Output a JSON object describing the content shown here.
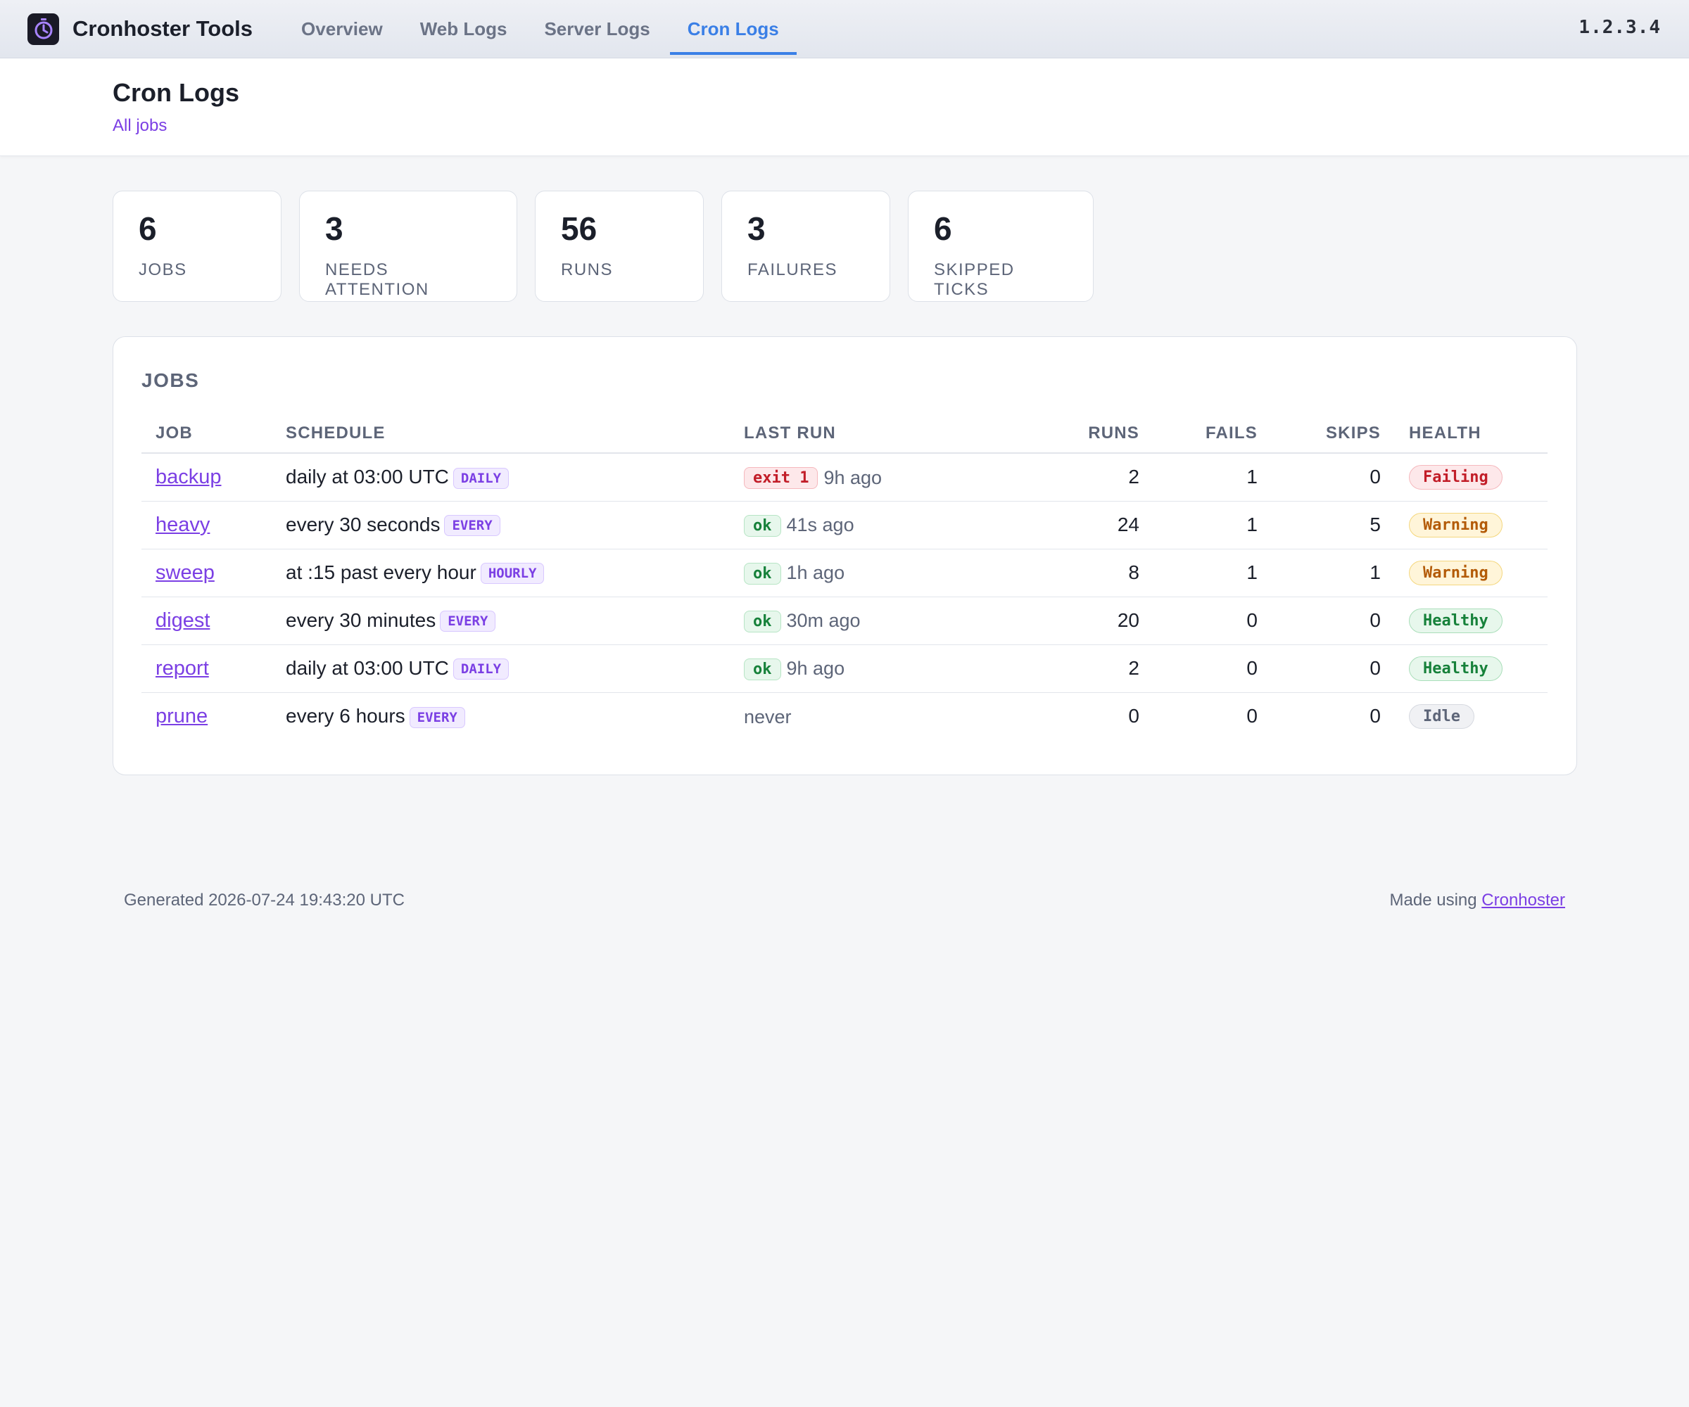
{
  "app": {
    "brand_name": "Cronhoster Tools",
    "brand_icon": "stopwatch-icon",
    "version": "1.2.3.4",
    "tabs": [
      {
        "label": "Overview",
        "active": false
      },
      {
        "label": "Web Logs",
        "active": false
      },
      {
        "label": "Server Logs",
        "active": false
      },
      {
        "label": "Cron Logs",
        "active": true
      }
    ],
    "accent_color": "#3a7fe6",
    "link_color": "#7b3fe4"
  },
  "header": {
    "title": "Cron Logs",
    "crumb": "All jobs"
  },
  "stats": [
    {
      "value": "6",
      "label": "JOBS"
    },
    {
      "value": "3",
      "label": "NEEDS ATTENTION"
    },
    {
      "value": "56",
      "label": "RUNS"
    },
    {
      "value": "3",
      "label": "FAILURES"
    },
    {
      "value": "6",
      "label": "SKIPPED TICKS"
    }
  ],
  "jobs": {
    "title": "JOBS",
    "columns": [
      "JOB",
      "SCHEDULE",
      "LAST RUN",
      "RUNS",
      "FAILS",
      "SKIPS",
      "HEALTH"
    ],
    "rows": [
      {
        "job": "backup",
        "schedule": "daily at 03:00 UTC",
        "kind": "DAILY",
        "last_status": "exit 1",
        "last_status_type": "fail",
        "last_ago": "9h ago",
        "runs": "2",
        "fails": "1",
        "skips": "0",
        "health": "Failing"
      },
      {
        "job": "heavy",
        "schedule": "every 30 seconds",
        "kind": "EVERY",
        "last_status": "ok",
        "last_status_type": "ok",
        "last_ago": "41s ago",
        "runs": "24",
        "fails": "1",
        "skips": "5",
        "health": "Warning"
      },
      {
        "job": "sweep",
        "schedule": "at :15 past every hour",
        "kind": "HOURLY",
        "last_status": "ok",
        "last_status_type": "ok",
        "last_ago": "1h ago",
        "runs": "8",
        "fails": "1",
        "skips": "1",
        "health": "Warning"
      },
      {
        "job": "digest",
        "schedule": "every 30 minutes",
        "kind": "EVERY",
        "last_status": "ok",
        "last_status_type": "ok",
        "last_ago": "30m ago",
        "runs": "20",
        "fails": "0",
        "skips": "0",
        "health": "Healthy"
      },
      {
        "job": "report",
        "schedule": "daily at 03:00 UTC",
        "kind": "DAILY",
        "last_status": "ok",
        "last_status_type": "ok",
        "last_ago": "9h ago",
        "runs": "2",
        "fails": "0",
        "skips": "0",
        "health": "Healthy"
      },
      {
        "job": "prune",
        "schedule": "every 6 hours",
        "kind": "EVERY",
        "last_status": "",
        "last_status_type": "none",
        "last_ago": "never",
        "runs": "0",
        "fails": "0",
        "skips": "0",
        "health": "Idle"
      }
    ]
  },
  "footer": {
    "generated": "Generated 2026-07-24 19:43:20 UTC",
    "made_using_prefix": "Made using",
    "made_using_link": "Cronhoster"
  }
}
